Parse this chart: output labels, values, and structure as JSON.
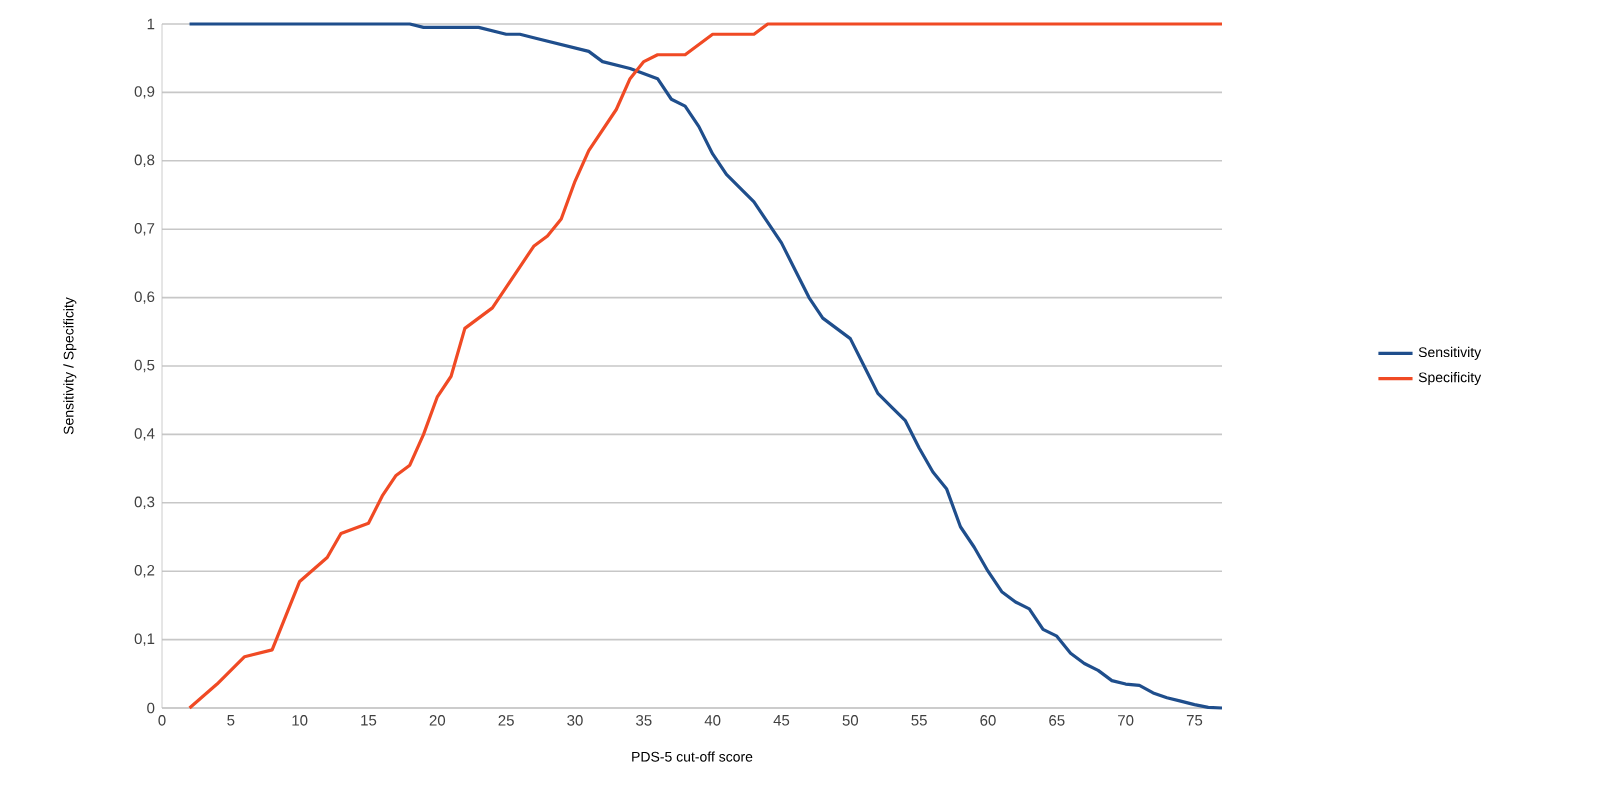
{
  "chart_data": {
    "type": "line",
    "xlabel": "PDS-5 cut-off score",
    "ylabel": "Sensitivity / Specificity",
    "xlim": [
      0,
      77
    ],
    "xticks": [
      0,
      5,
      10,
      15,
      20,
      25,
      30,
      35,
      40,
      45,
      50,
      55,
      60,
      65,
      70,
      75
    ],
    "ylim": [
      0,
      1
    ],
    "yticks": [
      0,
      {
        "value": 0.1,
        "label": "0,1"
      },
      {
        "value": 0.2,
        "label": "0,2"
      },
      {
        "value": 0.3,
        "label": "0,3"
      },
      {
        "value": 0.4,
        "label": "0,4"
      },
      {
        "value": 0.5,
        "label": "0,5"
      },
      {
        "value": 0.6,
        "label": "0,6"
      },
      {
        "value": 0.7,
        "label": "0,7"
      },
      {
        "value": 0.8,
        "label": "0,8"
      },
      {
        "value": 0.9,
        "label": "0,9"
      },
      1
    ],
    "grid": "y",
    "legend": "right",
    "marker": "none",
    "line_style": "solid",
    "series": [
      {
        "name": "Sensitivity",
        "color": "#1f4e8c",
        "x": [
          2,
          18,
          19,
          23,
          25,
          26,
          27,
          29,
          31,
          32,
          34,
          36,
          37,
          38,
          39,
          40,
          41,
          42,
          43,
          44,
          45,
          46,
          47,
          48,
          49,
          50,
          51,
          52,
          53,
          54,
          55,
          56,
          57,
          58,
          59,
          60,
          61,
          62,
          63,
          64,
          65,
          66,
          67,
          68,
          69,
          70,
          71,
          72,
          73,
          74,
          75,
          76,
          77
        ],
        "values": [
          1,
          1,
          0.995,
          0.995,
          0.985,
          0.985,
          0.98,
          0.97,
          0.96,
          0.945,
          0.935,
          0.92,
          0.89,
          0.88,
          0.85,
          0.81,
          0.78,
          0.76,
          0.74,
          0.71,
          0.68,
          0.64,
          0.6,
          0.57,
          0.555,
          0.54,
          0.5,
          0.46,
          0.44,
          0.42,
          0.38,
          0.345,
          0.32,
          0.265,
          0.235,
          0.2,
          0.17,
          0.155,
          0.145,
          0.115,
          0.105,
          0.08,
          0.065,
          0.055,
          0.04,
          0.035,
          0.033,
          0.022,
          0.015,
          0.01,
          0.005,
          0.001,
          0
        ]
      },
      {
        "name": "Specificity",
        "color": "#f04a24",
        "x": [
          2,
          4,
          6,
          8,
          9,
          10,
          12,
          13,
          15,
          16,
          17,
          18,
          19,
          20,
          21,
          22,
          23,
          24,
          25,
          26,
          27,
          28,
          29,
          30,
          31,
          32,
          33,
          34,
          35,
          36,
          38,
          40,
          43,
          44,
          77
        ],
        "values": [
          0,
          0.035,
          0.075,
          0.085,
          0.135,
          0.185,
          0.22,
          0.255,
          0.27,
          0.31,
          0.34,
          0.355,
          0.4,
          0.455,
          0.485,
          0.555,
          0.57,
          0.585,
          0.615,
          0.645,
          0.675,
          0.69,
          0.715,
          0.77,
          0.815,
          0.845,
          0.875,
          0.92,
          0.945,
          0.955,
          0.955,
          0.985,
          0.985,
          1,
          1
        ]
      }
    ]
  }
}
